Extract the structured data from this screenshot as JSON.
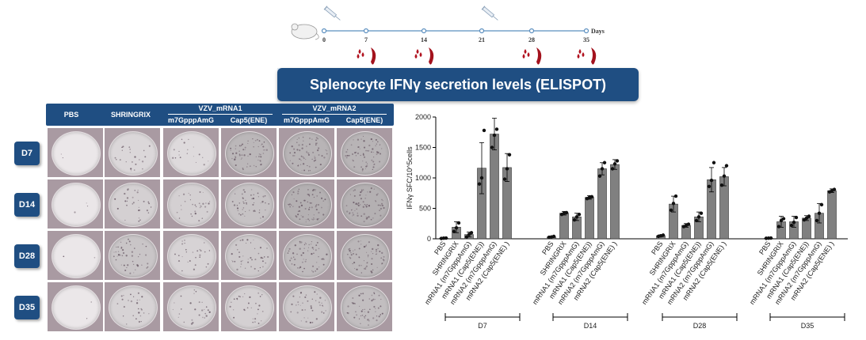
{
  "timeline": {
    "days": [
      "0",
      "7",
      "14",
      "21",
      "28",
      "35"
    ],
    "unit_label": "Days",
    "injection_days": [
      "0",
      "21"
    ],
    "bleed_days": [
      "7",
      "14",
      "28",
      "35"
    ]
  },
  "banner": {
    "title": "Splenocyte IFNγ secretion levels (ELISPOT)"
  },
  "elispot_grid": {
    "headers": {
      "pbs": "PBS",
      "shringrix": "SHRINGRIX",
      "mrna1": "VZV_mRNA1",
      "mrna2": "VZV_mRNA2",
      "mrna1_a": "m7GpppAmG",
      "mrna1_b": "Cap5(ENE)",
      "mrna2_a": "m7GpppAmG",
      "mrna2_b": "Cap5(ENE)"
    },
    "rows": [
      "D7",
      "D14",
      "D28",
      "D35"
    ],
    "well_density": [
      [
        0.02,
        0.25,
        0.2,
        0.7,
        0.75,
        0.75
      ],
      [
        0.03,
        0.35,
        0.35,
        0.55,
        0.8,
        0.8
      ],
      [
        0.02,
        0.5,
        0.3,
        0.45,
        0.65,
        0.7
      ],
      [
        0.02,
        0.3,
        0.3,
        0.35,
        0.45,
        0.6
      ]
    ],
    "colors": {
      "header_bg": "#1f4e82",
      "well_bg": "#a99aa2"
    }
  },
  "chart_data": {
    "type": "bar",
    "ylabel": "IFNγ SFC/10^5cells",
    "ylim": [
      0,
      2000
    ],
    "yticks": [
      "0",
      "500",
      "1000",
      "1500",
      "2000"
    ],
    "categories": [
      "PBS",
      "SHRINGRIX",
      "mRNA1 (m7GpppAmG)",
      "mRNA1 (Cap5(ENE))",
      "mRNA2 (m7GpppAmG)",
      "mRNA2 (Cap5(ENE) )"
    ],
    "groups": [
      {
        "name": "D7",
        "values": [
          10,
          190,
          70,
          1160,
          1720,
          1170
        ],
        "errors": [
          5,
          90,
          40,
          420,
          260,
          230
        ],
        "points": [
          [
            5,
            10,
            12
          ],
          [
            120,
            180,
            260
          ],
          [
            30,
            70,
            100
          ],
          [
            900,
            1000,
            1780
          ],
          [
            1500,
            1700,
            1800
          ],
          [
            980,
            1150,
            1380
          ]
        ]
      },
      {
        "name": "D14",
        "values": [
          30,
          420,
          360,
          680,
          1150,
          1220
        ],
        "errors": [
          10,
          30,
          60,
          30,
          100,
          80
        ],
        "points": [
          [
            25,
            30,
            40
          ],
          [
            400,
            420,
            430
          ],
          [
            310,
            360,
            400
          ],
          [
            660,
            680,
            690
          ],
          [
            1030,
            1150,
            1250
          ],
          [
            1150,
            1230,
            1280
          ]
        ]
      },
      {
        "name": "D28",
        "values": [
          50,
          570,
          220,
          360,
          970,
          1020
        ],
        "errors": [
          15,
          130,
          30,
          80,
          200,
          150
        ],
        "points": [
          [
            40,
            50,
            60
          ],
          [
            470,
            580,
            700
          ],
          [
            200,
            220,
            240
          ],
          [
            300,
            360,
            420
          ],
          [
            860,
            960,
            1250
          ],
          [
            880,
            1030,
            1200
          ]
        ]
      },
      {
        "name": "D35",
        "values": [
          10,
          280,
          280,
          340,
          420,
          790
        ],
        "errors": [
          5,
          90,
          90,
          40,
          160,
          30
        ],
        "points": [
          [
            8,
            10,
            12
          ],
          [
            200,
            300,
            330
          ],
          [
            220,
            270,
            350
          ],
          [
            310,
            340,
            370
          ],
          [
            300,
            420,
            560
          ],
          [
            770,
            790,
            810
          ]
        ]
      }
    ],
    "bar_color": "#808080",
    "grid": false
  }
}
